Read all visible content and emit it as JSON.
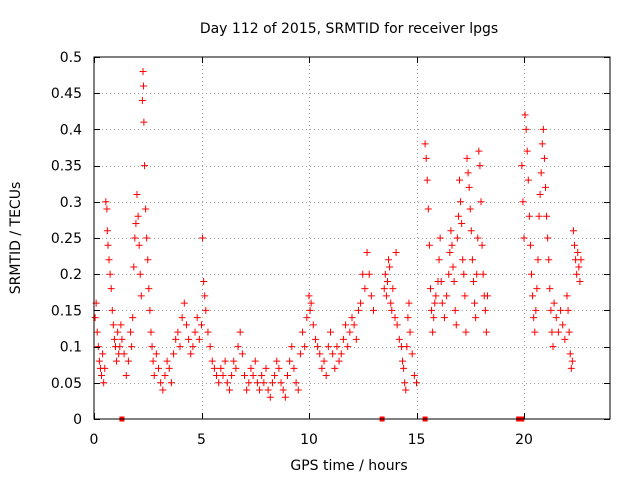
{
  "chart_data": {
    "type": "scatter",
    "title": "Day 112 of 2015, SRMTID for receiver lpgs",
    "xlabel": "GPS time / hours",
    "ylabel": "SRMTID / TECUs",
    "xlim": [
      0,
      24
    ],
    "ylim": [
      0,
      0.5
    ],
    "x_ticks": [
      0,
      5,
      10,
      15,
      20
    ],
    "x_tick_labels": [
      "0",
      "5",
      "10",
      "15",
      "20"
    ],
    "y_ticks": [
      0,
      0.05,
      0.1,
      0.15,
      0.2,
      0.25,
      0.3,
      0.35,
      0.4,
      0.45,
      0.5
    ],
    "y_tick_labels": [
      "0",
      "0.05",
      "0.1",
      "0.15",
      "0.2",
      "0.25",
      "0.3",
      "0.35",
      "0.4",
      "0.45",
      "0.5"
    ],
    "grid": true,
    "marker": "+",
    "color": "#ff0000",
    "series": [
      {
        "name": "SRMTID",
        "points": [
          [
            0.05,
            0.14
          ],
          [
            0.1,
            0.16
          ],
          [
            0.15,
            0.12
          ],
          [
            0.2,
            0.1
          ],
          [
            0.25,
            0.08
          ],
          [
            0.3,
            0.07
          ],
          [
            0.35,
            0.06
          ],
          [
            0.4,
            0.09
          ],
          [
            0.45,
            0.05
          ],
          [
            0.5,
            0.07
          ],
          [
            0.55,
            0.3
          ],
          [
            0.6,
            0.29
          ],
          [
            0.62,
            0.26
          ],
          [
            0.65,
            0.24
          ],
          [
            0.7,
            0.22
          ],
          [
            0.75,
            0.2
          ],
          [
            0.8,
            0.18
          ],
          [
            0.85,
            0.15
          ],
          [
            0.9,
            0.13
          ],
          [
            0.95,
            0.11
          ],
          [
            1.0,
            0.1
          ],
          [
            1.05,
            0.08
          ],
          [
            1.1,
            0.12
          ],
          [
            1.15,
            0.09
          ],
          [
            1.2,
            0.1
          ],
          [
            1.25,
            0.13
          ],
          [
            1.3,
            0.11
          ],
          [
            1.4,
            0.09
          ],
          [
            1.5,
            0.06
          ],
          [
            1.6,
            0.08
          ],
          [
            1.7,
            0.12
          ],
          [
            1.75,
            0.1
          ],
          [
            1.8,
            0.14
          ],
          [
            1.85,
            0.21
          ],
          [
            1.9,
            0.25
          ],
          [
            1.95,
            0.27
          ],
          [
            2.0,
            0.31
          ],
          [
            2.05,
            0.28
          ],
          [
            2.1,
            0.24
          ],
          [
            2.15,
            0.2
          ],
          [
            2.2,
            0.17
          ],
          [
            2.25,
            0.44
          ],
          [
            2.28,
            0.48
          ],
          [
            2.3,
            0.46
          ],
          [
            2.32,
            0.41
          ],
          [
            2.35,
            0.35
          ],
          [
            2.4,
            0.29
          ],
          [
            2.45,
            0.25
          ],
          [
            2.5,
            0.22
          ],
          [
            2.55,
            0.18
          ],
          [
            2.6,
            0.15
          ],
          [
            2.65,
            0.12
          ],
          [
            2.7,
            0.1
          ],
          [
            2.75,
            0.08
          ],
          [
            2.8,
            0.06
          ],
          [
            2.9,
            0.09
          ],
          [
            3.0,
            0.07
          ],
          [
            3.1,
            0.05
          ],
          [
            3.2,
            0.04
          ],
          [
            3.3,
            0.06
          ],
          [
            3.4,
            0.08
          ],
          [
            3.5,
            0.07
          ],
          [
            3.6,
            0.05
          ],
          [
            3.7,
            0.09
          ],
          [
            3.8,
            0.11
          ],
          [
            3.9,
            0.12
          ],
          [
            4.0,
            0.1
          ],
          [
            4.1,
            0.14
          ],
          [
            4.2,
            0.16
          ],
          [
            4.3,
            0.13
          ],
          [
            4.4,
            0.11
          ],
          [
            4.5,
            0.09
          ],
          [
            4.6,
            0.1
          ],
          [
            4.7,
            0.12
          ],
          [
            4.8,
            0.14
          ],
          [
            4.9,
            0.11
          ],
          [
            5.0,
            0.13
          ],
          [
            5.05,
            0.25
          ],
          [
            5.1,
            0.19
          ],
          [
            5.15,
            0.17
          ],
          [
            5.2,
            0.15
          ],
          [
            5.3,
            0.12
          ],
          [
            5.4,
            0.1
          ],
          [
            5.5,
            0.08
          ],
          [
            5.6,
            0.07
          ],
          [
            5.7,
            0.06
          ],
          [
            5.8,
            0.05
          ],
          [
            5.9,
            0.07
          ],
          [
            6.0,
            0.06
          ],
          [
            6.1,
            0.08
          ],
          [
            6.2,
            0.05
          ],
          [
            6.3,
            0.04
          ],
          [
            6.4,
            0.06
          ],
          [
            6.5,
            0.08
          ],
          [
            6.6,
            0.07
          ],
          [
            6.7,
            0.1
          ],
          [
            6.8,
            0.12
          ],
          [
            6.9,
            0.09
          ],
          [
            7.0,
            0.06
          ],
          [
            7.1,
            0.04
          ],
          [
            7.2,
            0.05
          ],
          [
            7.3,
            0.07
          ],
          [
            7.4,
            0.06
          ],
          [
            7.5,
            0.08
          ],
          [
            7.6,
            0.05
          ],
          [
            7.7,
            0.04
          ],
          [
            7.8,
            0.06
          ],
          [
            7.9,
            0.05
          ],
          [
            8.0,
            0.07
          ],
          [
            8.1,
            0.04
          ],
          [
            8.2,
            0.03
          ],
          [
            8.3,
            0.05
          ],
          [
            8.4,
            0.06
          ],
          [
            8.5,
            0.08
          ],
          [
            8.6,
            0.07
          ],
          [
            8.7,
            0.05
          ],
          [
            8.8,
            0.04
          ],
          [
            8.9,
            0.03
          ],
          [
            9.0,
            0.06
          ],
          [
            9.1,
            0.08
          ],
          [
            9.2,
            0.1
          ],
          [
            9.3,
            0.07
          ],
          [
            9.4,
            0.05
          ],
          [
            9.5,
            0.04
          ],
          [
            9.6,
            0.09
          ],
          [
            9.7,
            0.12
          ],
          [
            9.8,
            0.1
          ],
          [
            9.9,
            0.14
          ],
          [
            10.0,
            0.17
          ],
          [
            10.05,
            0.15
          ],
          [
            10.1,
            0.16
          ],
          [
            10.2,
            0.13
          ],
          [
            10.3,
            0.11
          ],
          [
            10.4,
            0.1
          ],
          [
            10.5,
            0.09
          ],
          [
            10.6,
            0.07
          ],
          [
            10.7,
            0.08
          ],
          [
            10.8,
            0.06
          ],
          [
            10.9,
            0.1
          ],
          [
            11.0,
            0.12
          ],
          [
            11.1,
            0.09
          ],
          [
            11.2,
            0.07
          ],
          [
            11.3,
            0.1
          ],
          [
            11.4,
            0.08
          ],
          [
            11.5,
            0.09
          ],
          [
            11.6,
            0.11
          ],
          [
            11.7,
            0.13
          ],
          [
            11.8,
            0.1
          ],
          [
            11.9,
            0.12
          ],
          [
            12.0,
            0.14
          ],
          [
            12.1,
            0.13
          ],
          [
            12.2,
            0.11
          ],
          [
            12.3,
            0.15
          ],
          [
            12.4,
            0.16
          ],
          [
            12.5,
            0.2
          ],
          [
            12.6,
            0.18
          ],
          [
            12.7,
            0.23
          ],
          [
            12.8,
            0.2
          ],
          [
            12.9,
            0.17
          ],
          [
            13.0,
            0.15
          ],
          [
            13.5,
            0.18
          ],
          [
            13.55,
            0.2
          ],
          [
            13.6,
            0.17
          ],
          [
            13.65,
            0.19
          ],
          [
            13.7,
            0.22
          ],
          [
            13.75,
            0.21
          ],
          [
            13.8,
            0.16
          ],
          [
            13.85,
            0.15
          ],
          [
            13.9,
            0.18
          ],
          [
            14.0,
            0.14
          ],
          [
            14.05,
            0.23
          ],
          [
            14.1,
            0.13
          ],
          [
            14.2,
            0.11
          ],
          [
            14.3,
            0.1
          ],
          [
            14.35,
            0.08
          ],
          [
            14.4,
            0.07
          ],
          [
            14.45,
            0.05
          ],
          [
            14.5,
            0.04
          ],
          [
            14.55,
            0.1
          ],
          [
            14.6,
            0.14
          ],
          [
            14.65,
            0.16
          ],
          [
            14.7,
            0.12
          ],
          [
            14.8,
            0.09
          ],
          [
            14.9,
            0.06
          ],
          [
            15.0,
            0.05
          ],
          [
            15.4,
            0.38
          ],
          [
            15.45,
            0.36
          ],
          [
            15.5,
            0.33
          ],
          [
            15.55,
            0.29
          ],
          [
            15.6,
            0.24
          ],
          [
            15.65,
            0.18
          ],
          [
            15.7,
            0.15
          ],
          [
            15.75,
            0.12
          ],
          [
            15.8,
            0.14
          ],
          [
            15.85,
            0.16
          ],
          [
            15.9,
            0.17
          ],
          [
            16.0,
            0.19
          ],
          [
            16.05,
            0.22
          ],
          [
            16.1,
            0.25
          ],
          [
            16.15,
            0.19
          ],
          [
            16.2,
            0.16
          ],
          [
            16.3,
            0.14
          ],
          [
            16.4,
            0.17
          ],
          [
            16.5,
            0.2
          ],
          [
            16.55,
            0.23
          ],
          [
            16.6,
            0.26
          ],
          [
            16.65,
            0.24
          ],
          [
            16.7,
            0.21
          ],
          [
            16.75,
            0.19
          ],
          [
            16.8,
            0.15
          ],
          [
            16.85,
            0.13
          ],
          [
            16.9,
            0.25
          ],
          [
            16.95,
            0.28
          ],
          [
            17.0,
            0.33
          ],
          [
            17.05,
            0.3
          ],
          [
            17.1,
            0.27
          ],
          [
            17.15,
            0.22
          ],
          [
            17.2,
            0.2
          ],
          [
            17.25,
            0.17
          ],
          [
            17.3,
            0.12
          ],
          [
            17.35,
            0.36
          ],
          [
            17.4,
            0.34
          ],
          [
            17.45,
            0.32
          ],
          [
            17.5,
            0.29
          ],
          [
            17.55,
            0.26
          ],
          [
            17.6,
            0.22
          ],
          [
            17.65,
            0.19
          ],
          [
            17.7,
            0.16
          ],
          [
            17.75,
            0.14
          ],
          [
            17.8,
            0.2
          ],
          [
            17.85,
            0.25
          ],
          [
            17.9,
            0.37
          ],
          [
            17.95,
            0.35
          ],
          [
            18.0,
            0.3
          ],
          [
            18.05,
            0.24
          ],
          [
            18.1,
            0.2
          ],
          [
            18.15,
            0.17
          ],
          [
            18.2,
            0.15
          ],
          [
            18.25,
            0.12
          ],
          [
            18.3,
            0.17
          ],
          [
            19.9,
            0.35
          ],
          [
            19.95,
            0.3
          ],
          [
            20.0,
            0.25
          ],
          [
            20.05,
            0.42
          ],
          [
            20.1,
            0.4
          ],
          [
            20.15,
            0.37
          ],
          [
            20.2,
            0.33
          ],
          [
            20.25,
            0.28
          ],
          [
            20.3,
            0.24
          ],
          [
            20.35,
            0.2
          ],
          [
            20.4,
            0.17
          ],
          [
            20.45,
            0.14
          ],
          [
            20.5,
            0.12
          ],
          [
            20.55,
            0.15
          ],
          [
            20.6,
            0.18
          ],
          [
            20.65,
            0.22
          ],
          [
            20.7,
            0.28
          ],
          [
            20.75,
            0.31
          ],
          [
            20.8,
            0.34
          ],
          [
            20.85,
            0.38
          ],
          [
            20.9,
            0.4
          ],
          [
            20.95,
            0.36
          ],
          [
            21.0,
            0.32
          ],
          [
            21.05,
            0.28
          ],
          [
            21.1,
            0.25
          ],
          [
            21.15,
            0.22
          ],
          [
            21.2,
            0.18
          ],
          [
            21.25,
            0.15
          ],
          [
            21.3,
            0.12
          ],
          [
            21.35,
            0.1
          ],
          [
            21.4,
            0.16
          ],
          [
            21.5,
            0.14
          ],
          [
            21.6,
            0.12
          ],
          [
            21.7,
            0.15
          ],
          [
            21.8,
            0.13
          ],
          [
            21.9,
            0.11
          ],
          [
            22.0,
            0.17
          ],
          [
            22.05,
            0.15
          ],
          [
            22.1,
            0.12
          ],
          [
            22.15,
            0.09
          ],
          [
            22.2,
            0.07
          ],
          [
            22.25,
            0.08
          ],
          [
            22.3,
            0.26
          ],
          [
            22.35,
            0.24
          ],
          [
            22.4,
            0.22
          ],
          [
            22.45,
            0.2
          ],
          [
            22.5,
            0.23
          ],
          [
            22.55,
            0.21
          ],
          [
            22.6,
            0.19
          ],
          [
            22.65,
            0.22
          ]
        ]
      }
    ],
    "zero_markers_x": [
      1.3,
      13.4,
      15.4,
      19.75,
      19.8,
      19.85,
      19.9
    ]
  }
}
